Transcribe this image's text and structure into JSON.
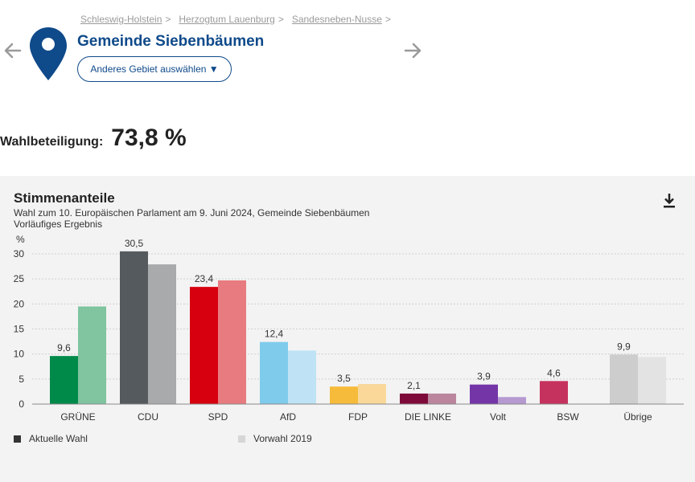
{
  "breadcrumb": [
    "Schleswig-Holstein",
    "Herzogtum Lauenburg",
    "Sandesneben-Nusse"
  ],
  "breadcrumb_separator": ">",
  "title": "Gemeinde Siebenbäumen",
  "area_button": "Anderes Gebiet auswählen ▼",
  "turnout": {
    "label": "Wahlbeteiligung:",
    "value": "73,8 %"
  },
  "colors": {
    "brand": "#0f4a8a",
    "legend_current": "#333333",
    "legend_previous": "#d6d6d6"
  },
  "chart_data": {
    "type": "bar",
    "title": "Stimmenanteile",
    "subtitle": "Wahl zum 10. Europäischen Parlament am 9. Juni 2024, Gemeinde Siebenbäumen",
    "note": "Vorläufiges Ergebnis",
    "ylabel": "%",
    "ylim": [
      0,
      30
    ],
    "yticks": [
      0,
      5,
      10,
      15,
      20,
      25,
      30
    ],
    "grid": true,
    "legend_position": "bottom",
    "categories": [
      "GRÜNE",
      "CDU",
      "SPD",
      "AfD",
      "FDP",
      "DIE LINKE",
      "Volt",
      "BSW",
      "Übrige"
    ],
    "series": [
      {
        "name": "Aktuelle Wahl",
        "values": [
          9.6,
          30.5,
          23.4,
          12.4,
          3.5,
          2.1,
          3.9,
          4.6,
          9.9
        ],
        "labels": [
          "9,6",
          "30,5",
          "23,4",
          "12,4",
          "3,5",
          "2,1",
          "3,9",
          "4,6",
          "9,9"
        ],
        "colors": [
          "#008a4a",
          "#555a5e",
          "#d7000f",
          "#7fcbec",
          "#f6bb3a",
          "#7e0a3a",
          "#7436a7",
          "#c6325e",
          "#cdcdcd"
        ]
      },
      {
        "name": "Vorwahl 2019",
        "values": [
          19.5,
          27.9,
          24.7,
          10.7,
          4.0,
          2.1,
          1.4,
          null,
          9.4
        ],
        "colors": [
          "#80c4a0",
          "#a8aaab",
          "#e77b80",
          "#bfe3f4",
          "#f9d89a",
          "#bb859e",
          "#b699d1",
          "#e0a0b1",
          "#e3e3e3"
        ]
      }
    ]
  }
}
